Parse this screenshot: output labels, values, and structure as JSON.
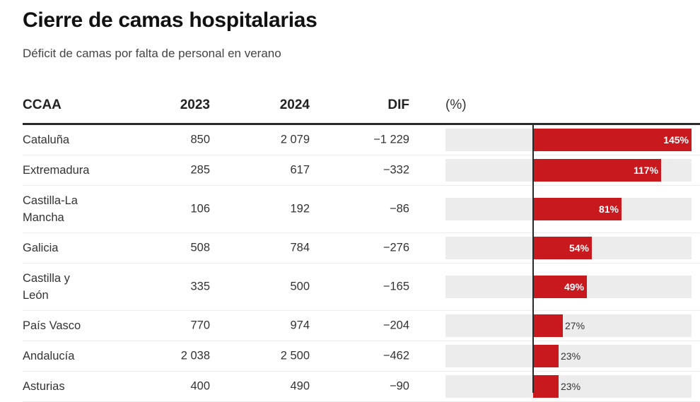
{
  "header": {
    "title": "Cierre de camas hospitalarias",
    "subtitle": "Déficit de camas por falta de personal en verano"
  },
  "columns": {
    "name": "CCAA",
    "y2023": "2023",
    "y2024": "2024",
    "dif": "DIF",
    "pct": "(%)"
  },
  "colors": {
    "bar": "#c8191e",
    "bar_bg": "#ececec",
    "axis": "#2a2a2a"
  },
  "chart_data": {
    "type": "table",
    "title": "Cierre de camas hospitalarias",
    "subtitle": "Déficit de camas por falta de personal en verano",
    "columns": [
      "CCAA",
      "2023",
      "2024",
      "DIF",
      "(%)"
    ],
    "bar_range": [
      0,
      145
    ],
    "rows": [
      {
        "name": "Cataluña",
        "y2023": "850",
        "y2024": "2 079",
        "dif": "−1 229",
        "pct": 145,
        "pct_label": "145%"
      },
      {
        "name": "Extremadura",
        "y2023": "285",
        "y2024": "617",
        "dif": "−332",
        "pct": 117,
        "pct_label": "117%"
      },
      {
        "name": "Castilla-La Mancha",
        "name_lines": [
          "Castilla-La",
          "Mancha"
        ],
        "y2023": "106",
        "y2024": "192",
        "dif": "−86",
        "pct": 81,
        "pct_label": "81%"
      },
      {
        "name": "Galicia",
        "y2023": "508",
        "y2024": "784",
        "dif": "−276",
        "pct": 54,
        "pct_label": "54%"
      },
      {
        "name": "Castilla y León",
        "name_lines": [
          "Castilla y",
          "León"
        ],
        "y2023": "335",
        "y2024": "500",
        "dif": "−165",
        "pct": 49,
        "pct_label": "49%"
      },
      {
        "name": "País Vasco",
        "y2023": "770",
        "y2024": "974",
        "dif": "−204",
        "pct": 27,
        "pct_label": "27%"
      },
      {
        "name": "Andalucía",
        "y2023": "2 038",
        "y2024": "2 500",
        "dif": "−462",
        "pct": 23,
        "pct_label": "23%"
      },
      {
        "name": "Asturias",
        "y2023": "400",
        "y2024": "490",
        "dif": "−90",
        "pct": 23,
        "pct_label": "23%"
      }
    ]
  }
}
